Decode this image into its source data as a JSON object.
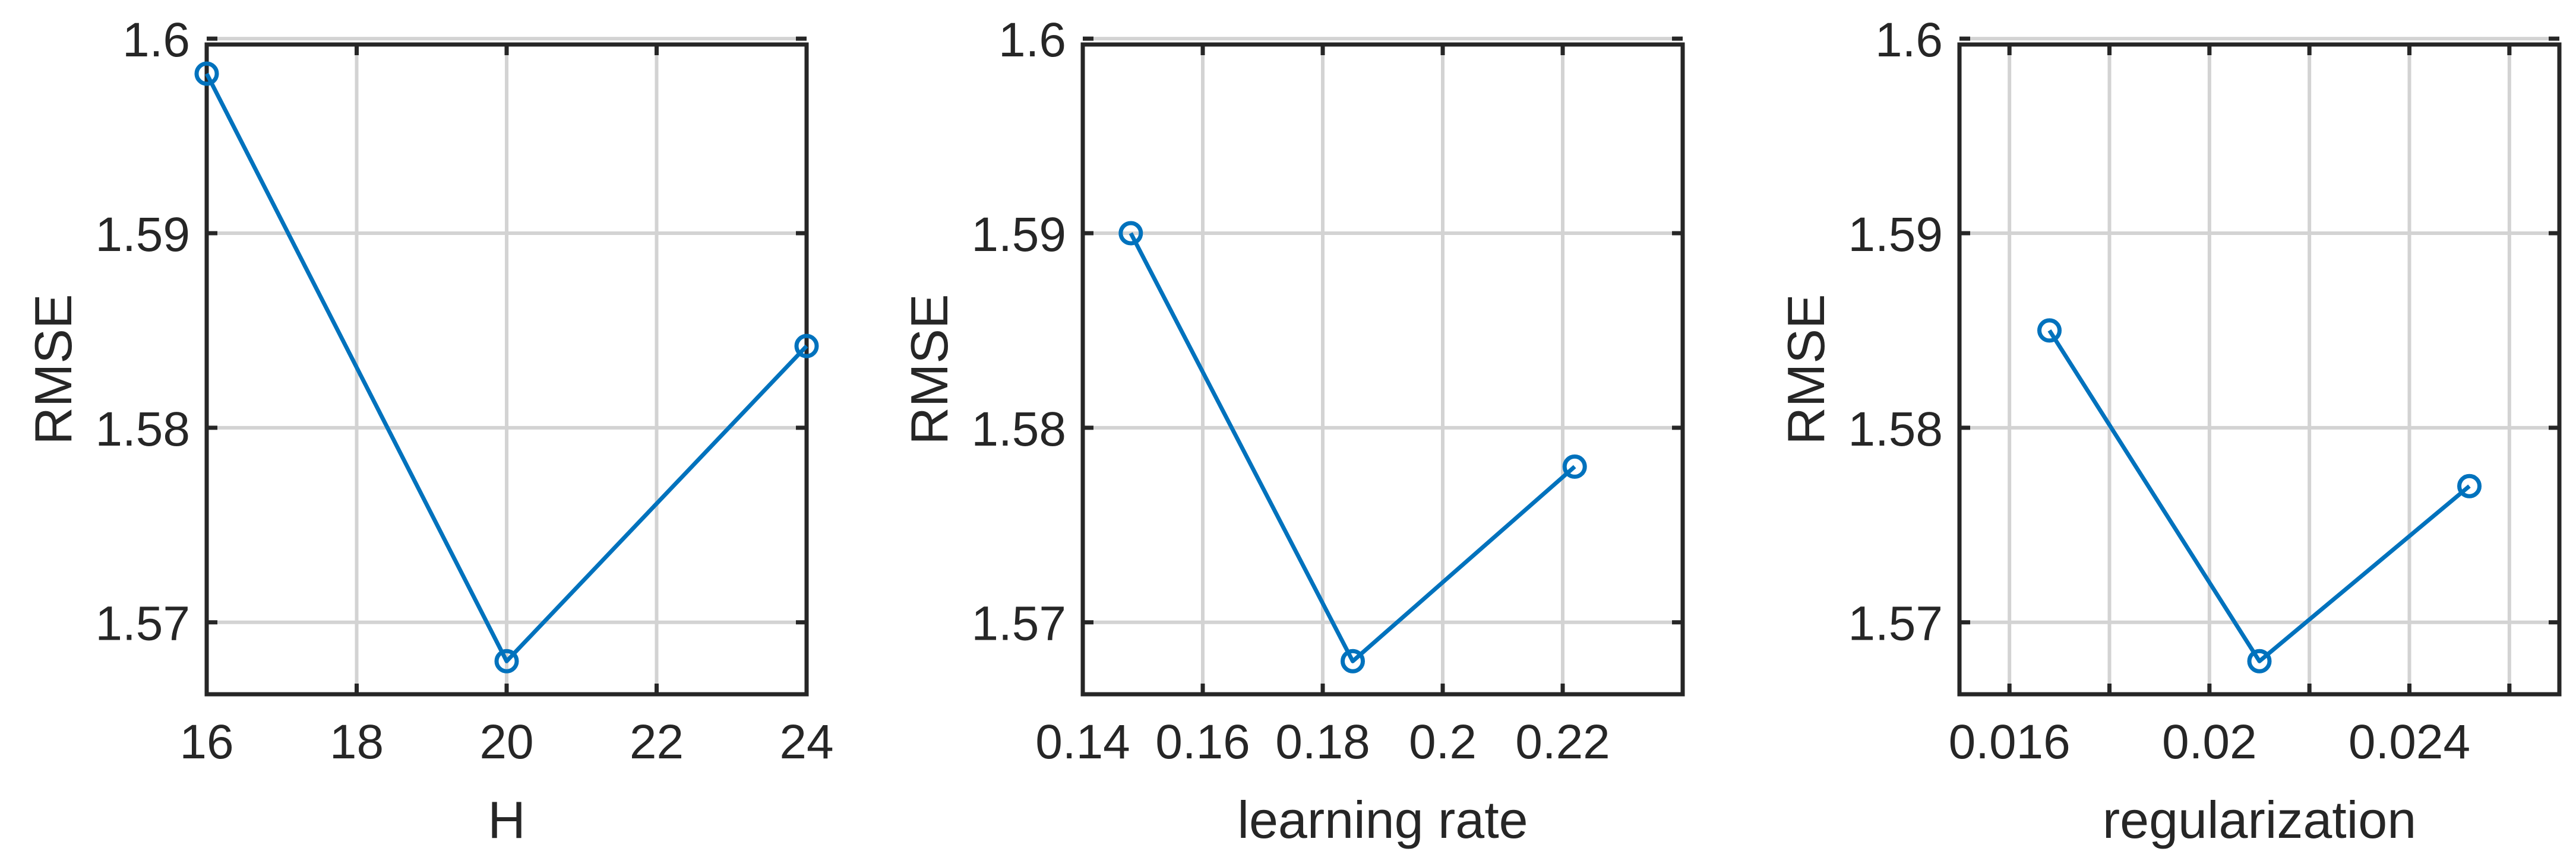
{
  "chart_data": [
    {
      "type": "line",
      "xlabel": "H",
      "ylabel": "RMSE",
      "xlim": [
        16,
        24
      ],
      "ylim": [
        1.5663,
        1.5997
      ],
      "x_ticks": [
        16,
        18,
        20,
        22,
        24
      ],
      "x_tick_labels": [
        "16",
        "18",
        "20",
        "22",
        "24"
      ],
      "y_ticks": [
        1.57,
        1.58,
        1.59,
        1.6
      ],
      "y_tick_labels": [
        "1.57",
        "1.58",
        "1.59",
        "1.6"
      ],
      "grid": true,
      "series": [
        {
          "x": [
            16,
            20,
            24
          ],
          "y": [
            1.5982,
            1.568,
            1.5842
          ],
          "color": "#0072bd",
          "marker": "circle"
        }
      ]
    },
    {
      "type": "line",
      "xlabel": "learning rate",
      "ylabel": "RMSE",
      "xlim": [
        0.14,
        0.24
      ],
      "ylim": [
        1.5663,
        1.5997
      ],
      "x_ticks": [
        0.14,
        0.16,
        0.18,
        0.2,
        0.22
      ],
      "x_tick_labels": [
        "0.14",
        "0.16",
        "0.18",
        "0.2",
        "0.22"
      ],
      "y_ticks": [
        1.57,
        1.58,
        1.59,
        1.6
      ],
      "y_tick_labels": [
        "1.57",
        "1.58",
        "1.59",
        "1.6"
      ],
      "grid": true,
      "series": [
        {
          "x": [
            0.148,
            0.185,
            0.222
          ],
          "y": [
            1.59,
            1.568,
            1.578
          ],
          "color": "#0072bd",
          "marker": "circle"
        }
      ]
    },
    {
      "type": "line",
      "xlabel": "regularization",
      "ylabel": "RMSE",
      "xlim": [
        0.015,
        0.027
      ],
      "ylim": [
        1.5663,
        1.5997
      ],
      "x_ticks": [
        0.016,
        0.018,
        0.02,
        0.022,
        0.024,
        0.026
      ],
      "x_tick_labels": [
        "0.016",
        "",
        "0.02",
        "",
        "0.024",
        ""
      ],
      "y_ticks": [
        1.57,
        1.58,
        1.59,
        1.6
      ],
      "y_tick_labels": [
        "1.57",
        "1.58",
        "1.59",
        "1.6"
      ],
      "grid": true,
      "series": [
        {
          "x": [
            0.0168,
            0.021,
            0.0252
          ],
          "y": [
            1.585,
            1.568,
            1.577
          ],
          "color": "#0072bd",
          "marker": "circle"
        }
      ]
    }
  ]
}
